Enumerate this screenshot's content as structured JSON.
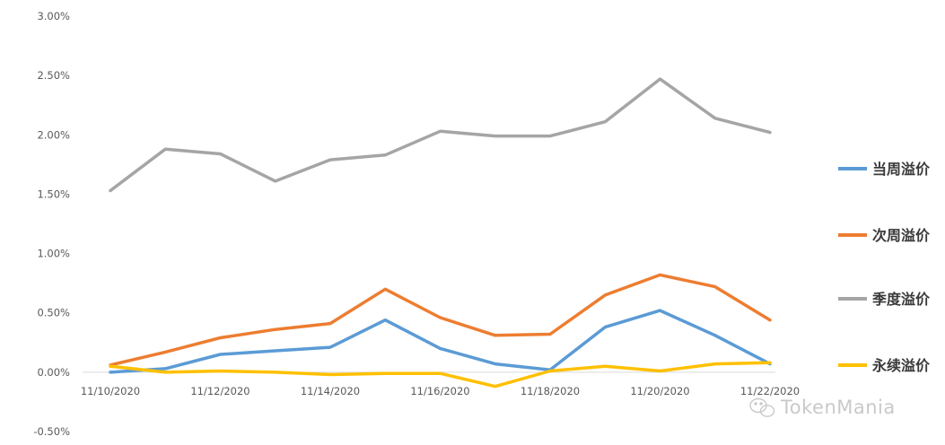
{
  "chart_data": {
    "type": "line",
    "x": [
      "11/10/2020",
      "11/11/2020",
      "11/12/2020",
      "11/13/2020",
      "11/14/2020",
      "11/15/2020",
      "11/16/2020",
      "11/17/2020",
      "11/18/2020",
      "11/19/2020",
      "11/20/2020",
      "11/21/2020",
      "11/22/2020"
    ],
    "x_tick_labels": [
      "11/10/2020",
      "11/12/2020",
      "11/14/2020",
      "11/16/2020",
      "11/18/2020",
      "11/20/2020",
      "11/22/2020"
    ],
    "y_tick_labels": [
      "3.00%",
      "2.50%",
      "2.00%",
      "1.50%",
      "1.00%",
      "0.50%",
      "0.00%",
      "-0.50%"
    ],
    "ylim": [
      -0.5,
      3.0
    ],
    "y_unit": "%",
    "grid": false,
    "legend_position": "right",
    "series": [
      {
        "name": "当周溢价",
        "color": "#5b9bd5",
        "values": [
          0.0,
          0.03,
          0.15,
          0.18,
          0.21,
          0.44,
          0.2,
          0.07,
          0.02,
          0.38,
          0.52,
          0.31,
          0.07
        ]
      },
      {
        "name": "次周溢价",
        "color": "#ed7d31",
        "values": [
          0.06,
          0.17,
          0.29,
          0.36,
          0.41,
          0.7,
          0.46,
          0.31,
          0.32,
          0.65,
          0.82,
          0.72,
          0.44
        ]
      },
      {
        "name": "季度溢价",
        "color": "#a5a5a5",
        "values": [
          1.53,
          1.88,
          1.84,
          1.61,
          1.79,
          1.83,
          2.03,
          1.99,
          1.99,
          2.11,
          2.47,
          2.14,
          2.02
        ]
      },
      {
        "name": "永续溢价",
        "color": "#ffc000",
        "values": [
          0.05,
          0.0,
          0.01,
          0.0,
          -0.02,
          -0.01,
          -0.01,
          -0.12,
          0.01,
          0.05,
          0.01,
          0.07,
          0.08
        ]
      }
    ]
  },
  "watermark": {
    "text": "TokenMania",
    "icon": "wechat-icon"
  }
}
